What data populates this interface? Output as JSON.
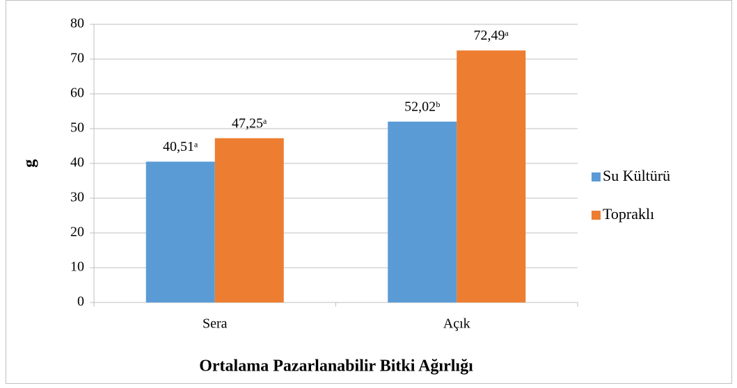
{
  "chart_data": {
    "type": "bar",
    "x_label": "Ortalama Pazarlanabilir Bitki Ağırlığı",
    "y_label": "g",
    "categories": [
      "Sera",
      "Açık"
    ],
    "series": [
      {
        "name": "Su Kültürü",
        "color": "#5b9bd5",
        "values": [
          40.51,
          52.02
        ],
        "value_labels": [
          "40,51ᵃ",
          "52,02ᵇ"
        ]
      },
      {
        "name": "Topraklı",
        "color": "#ed7d31",
        "values": [
          47.25,
          72.49
        ],
        "value_labels": [
          "47,25ᵃ",
          "72,49ᵃ"
        ]
      }
    ],
    "ylim": [
      0,
      80
    ],
    "yticks": [
      0,
      10,
      20,
      30,
      40,
      50,
      60,
      70,
      80
    ],
    "grid": true,
    "legend": "right"
  }
}
